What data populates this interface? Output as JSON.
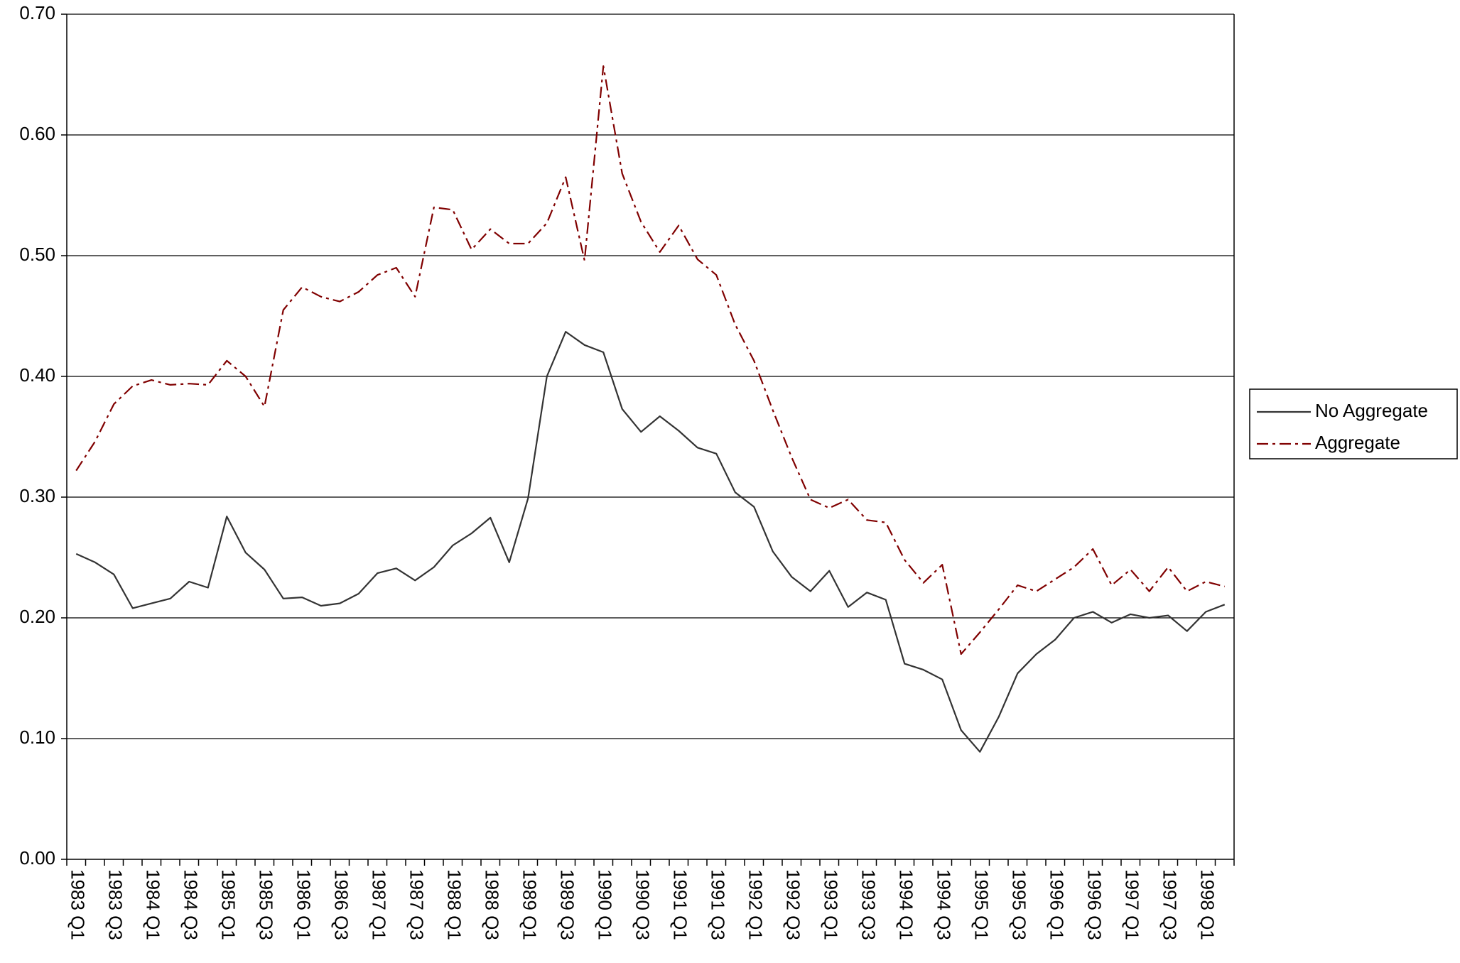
{
  "chart_data": {
    "type": "line",
    "categories": [
      "1983 Q1",
      null,
      "1983 Q3",
      null,
      "1984 Q1",
      null,
      "1984 Q3",
      null,
      "1985 Q1",
      null,
      "1985 Q3",
      null,
      "1986 Q1",
      null,
      "1986 Q3",
      null,
      "1987 Q1",
      null,
      "1987 Q3",
      null,
      "1988 Q1",
      null,
      "1988 Q3",
      null,
      "1989 Q1",
      null,
      "1989 Q3",
      null,
      "1990 Q1",
      null,
      "1990 Q3",
      null,
      "1991 Q1",
      null,
      "1991 Q3",
      null,
      "1992 Q1",
      null,
      "1992 Q3",
      null,
      "1993 Q1",
      null,
      "1993 Q3",
      null,
      "1994 Q1",
      null,
      "1994 Q3",
      null,
      "1995 Q1",
      null,
      "1995 Q3",
      null,
      "1996 Q1",
      null,
      "1996 Q3",
      null,
      "1997 Q1",
      null,
      "1997 Q3",
      null,
      "1998 Q1",
      null
    ],
    "series": [
      {
        "name": "No Aggregate",
        "color": "#333333",
        "style": "solid",
        "values": [
          0.253,
          0.246,
          0.236,
          0.208,
          0.212,
          0.216,
          0.23,
          0.225,
          0.284,
          0.254,
          0.24,
          0.216,
          0.217,
          0.21,
          0.212,
          0.22,
          0.237,
          0.241,
          0.231,
          0.242,
          0.26,
          0.27,
          0.283,
          0.246,
          0.299,
          0.4,
          0.437,
          0.426,
          0.42,
          0.373,
          0.354,
          0.367,
          0.355,
          0.341,
          0.336,
          0.304,
          0.292,
          0.255,
          0.234,
          0.222,
          0.239,
          0.209,
          0.221,
          0.215,
          0.162,
          0.157,
          0.149,
          0.107,
          0.089,
          0.118,
          0.154,
          0.17,
          0.182,
          0.2,
          0.205,
          0.196,
          0.203,
          0.2,
          0.202,
          0.189,
          0.205,
          0.211
        ]
      },
      {
        "name": "Aggregate",
        "color": "#800000",
        "style": "dashdot",
        "values": [
          0.322,
          0.346,
          0.377,
          0.392,
          0.397,
          0.393,
          0.394,
          0.393,
          0.413,
          0.4,
          0.375,
          0.455,
          0.474,
          0.466,
          0.462,
          0.47,
          0.484,
          0.49,
          0.466,
          0.54,
          0.538,
          0.505,
          0.522,
          0.51,
          0.51,
          0.527,
          0.565,
          0.496,
          0.657,
          0.568,
          0.528,
          0.503,
          0.525,
          0.497,
          0.484,
          0.443,
          0.413,
          0.372,
          0.333,
          0.298,
          0.291,
          0.298,
          0.281,
          0.279,
          0.248,
          0.229,
          0.244,
          0.17,
          0.188,
          0.207,
          0.227,
          0.222,
          0.232,
          0.242,
          0.257,
          0.227,
          0.24,
          0.222,
          0.242,
          0.222,
          0.23,
          0.226
        ]
      }
    ],
    "ylim": [
      0,
      0.7
    ],
    "yticks": [
      {
        "value": 0,
        "label": "0.00"
      },
      {
        "value": 0.1,
        "label": "0.10"
      },
      {
        "value": 0.2,
        "label": "0.20"
      },
      {
        "value": 0.3,
        "label": "0.30"
      },
      {
        "value": 0.4,
        "label": "0.40"
      },
      {
        "value": 0.5,
        "label": "0.50"
      },
      {
        "value": 0.6,
        "label": "0.60"
      },
      {
        "value": 0.7,
        "label": "0.70"
      }
    ],
    "grid": true,
    "legend": "right"
  }
}
